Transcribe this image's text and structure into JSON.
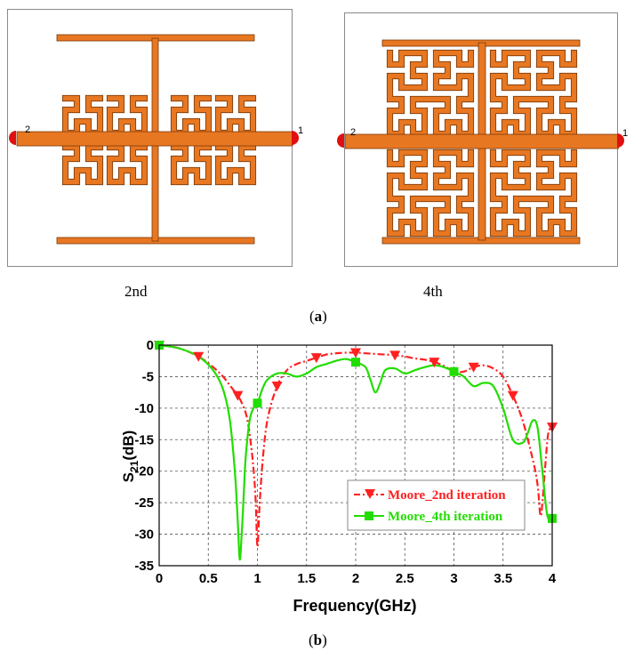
{
  "panel_a": {
    "iterations": [
      {
        "label": "2nd",
        "port_left": "2",
        "port_right": "1"
      },
      {
        "label": "4th",
        "port_left": "2",
        "port_right": "1"
      }
    ],
    "caption": {
      "open": "(",
      "letter": "a",
      "close": ")"
    }
  },
  "panel_b": {
    "caption": {
      "open": "(",
      "letter": "b",
      "close": ")"
    }
  },
  "colors": {
    "trace": "#e87722",
    "trace_edge": "#7a3a08",
    "port": "#e01010",
    "series_red": "#ff2020",
    "series_green": "#22dd00"
  },
  "chart_data": {
    "type": "line",
    "xlabel": "Frequency(GHz)",
    "ylabel_main": "S",
    "ylabel_sub": "21",
    "ylabel_unit": "(dB)",
    "xlim": [
      0,
      4
    ],
    "ylim": [
      -35,
      0
    ],
    "xticks": [
      "0",
      "0.5",
      "1",
      "1.5",
      "2",
      "2.5",
      "3",
      "3.5",
      "4"
    ],
    "yticks": [
      "0",
      "-5",
      "-10",
      "-15",
      "-20",
      "-25",
      "-30",
      "-35"
    ],
    "grid": true,
    "legend_position": "lower-right",
    "series": [
      {
        "name": "Moore_2nd iteration",
        "color": "#ff2020",
        "line": "dash-dot",
        "marker": "triangle-down",
        "x": [
          0,
          0.2,
          0.4,
          0.55,
          0.65,
          0.75,
          0.8,
          0.85,
          0.9,
          0.95,
          0.98,
          1.0,
          1.02,
          1.05,
          1.1,
          1.2,
          1.3,
          1.4,
          1.5,
          1.6,
          1.7,
          1.8,
          1.9,
          2.0,
          2.1,
          2.2,
          2.3,
          2.4,
          2.5,
          2.6,
          2.7,
          2.8,
          2.9,
          3.0,
          3.1,
          3.2,
          3.3,
          3.4,
          3.5,
          3.6,
          3.7,
          3.8,
          3.85,
          3.88,
          3.9,
          3.93,
          3.96,
          4.0
        ],
        "y": [
          0,
          -0.5,
          -1.8,
          -3.5,
          -5,
          -7,
          -8,
          -9.5,
          -12,
          -18,
          -24,
          -32,
          -26,
          -19,
          -12,
          -6.5,
          -4,
          -3,
          -2.5,
          -2,
          -1.5,
          -1.3,
          -1.2,
          -1.2,
          -1.3,
          -1.4,
          -1.5,
          -1.6,
          -1.8,
          -2.1,
          -2.3,
          -2.7,
          -3.3,
          -4.2,
          -4.2,
          -3.5,
          -3.2,
          -3.7,
          -5,
          -8,
          -12,
          -18,
          -22,
          -27,
          -25,
          -19,
          -14,
          -13
        ]
      },
      {
        "name": "Moore_4th iteration",
        "color": "#22dd00",
        "line": "solid",
        "marker": "square",
        "x": [
          0,
          0.2,
          0.4,
          0.55,
          0.65,
          0.72,
          0.77,
          0.8,
          0.82,
          0.84,
          0.86,
          0.88,
          0.92,
          0.96,
          1.0,
          1.05,
          1.1,
          1.2,
          1.3,
          1.4,
          1.5,
          1.6,
          1.7,
          1.8,
          1.9,
          2.0,
          2.1,
          2.15,
          2.2,
          2.25,
          2.3,
          2.4,
          2.5,
          2.6,
          2.7,
          2.8,
          2.9,
          3.0,
          3.1,
          3.2,
          3.3,
          3.4,
          3.5,
          3.6,
          3.7,
          3.75,
          3.8,
          3.85,
          3.9,
          3.95,
          4.0
        ],
        "y": [
          0,
          -0.5,
          -1.8,
          -4,
          -7,
          -12,
          -20,
          -28,
          -34,
          -30,
          -24,
          -18,
          -12,
          -10,
          -9.2,
          -7,
          -5.5,
          -4.5,
          -4.5,
          -5,
          -4.5,
          -3.5,
          -3,
          -2.5,
          -2.2,
          -2.7,
          -3.5,
          -5.5,
          -7.5,
          -6,
          -4,
          -3.7,
          -4.5,
          -4,
          -3.5,
          -3.2,
          -3.5,
          -4.2,
          -5,
          -6.5,
          -6,
          -6.5,
          -10,
          -15,
          -15.5,
          -14,
          -12,
          -13,
          -20,
          -27,
          -27.5
        ]
      }
    ]
  }
}
